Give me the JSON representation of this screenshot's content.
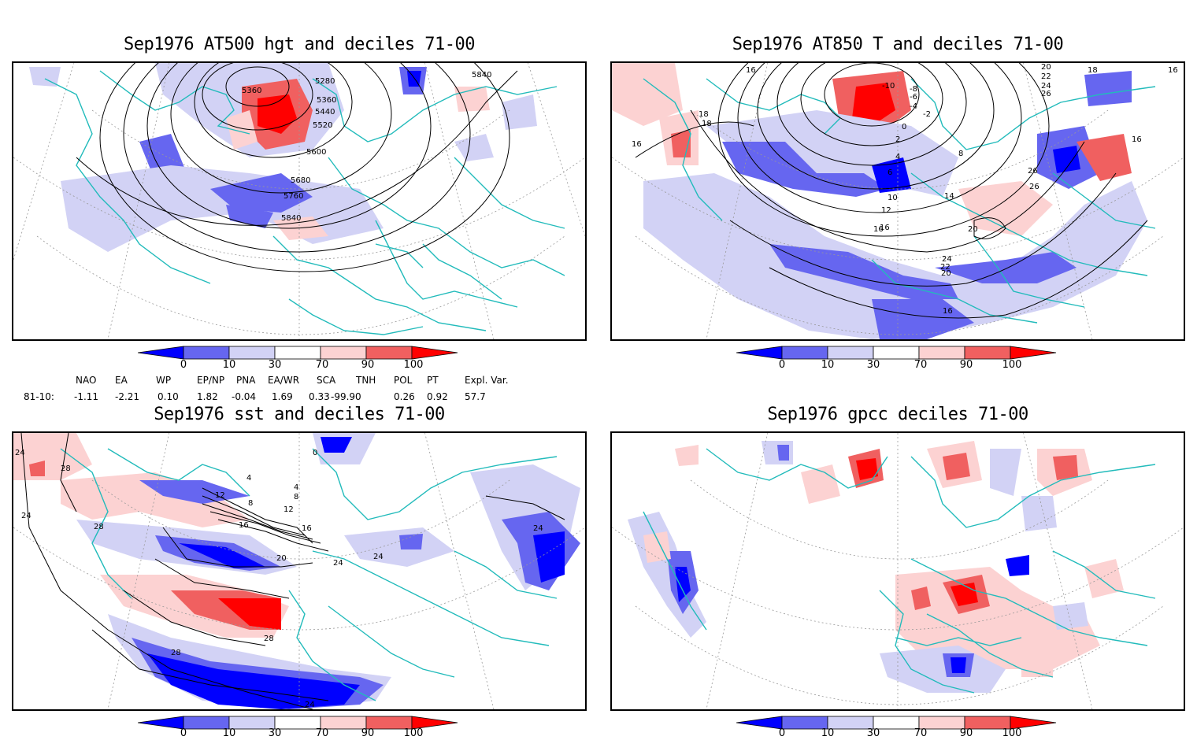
{
  "panels": [
    {
      "id": "at500",
      "title": "Sep1976 AT500 hgt and deciles 71-00",
      "contour_labels": [
        "5360",
        "5280",
        "5360",
        "5440",
        "5520",
        "5600",
        "5680",
        "5760",
        "5840",
        "5840"
      ]
    },
    {
      "id": "at850",
      "title": "Sep1976 AT850 T and deciles 71-00",
      "contour_labels": [
        "16",
        "18",
        "18",
        "16",
        "-10",
        "-8",
        "-6",
        "-4",
        "-2",
        "0",
        "2",
        "4",
        "6",
        "8",
        "10",
        "12",
        "14",
        "16",
        "20",
        "22",
        "24",
        "26",
        "26",
        "20",
        "16",
        "18",
        "16",
        "20",
        "22",
        "24",
        "26",
        "16",
        "16"
      ]
    },
    {
      "id": "sst",
      "title": "Sep1976 sst and deciles 71-00",
      "contour_labels": [
        "24",
        "28",
        "28",
        "24",
        "12",
        "8",
        "4",
        "0",
        "4",
        "8",
        "12",
        "16",
        "16",
        "20",
        "24",
        "24",
        "28",
        "24",
        "28",
        "24"
      ]
    },
    {
      "id": "gpcc",
      "title": "Sep1976 gpcc deciles 71-00",
      "contour_labels": []
    }
  ],
  "colorbar": {
    "tick_labels": [
      "0",
      "10",
      "30",
      "70",
      "90",
      "100"
    ],
    "colors": [
      "#0000ff",
      "#6666f0",
      "#d2d2f5",
      "#ffffff",
      "#fcd2d2",
      "#f06060",
      "#ff0000"
    ]
  },
  "indices": {
    "period": "81-10:",
    "names": [
      "NAO",
      "EA",
      "WP",
      "EP/NP",
      "PNA",
      "EA/WR",
      "SCA",
      "TNH",
      "POL",
      "PT",
      "Expl. Var."
    ],
    "values": [
      "-1.11",
      "-2.21",
      "0.10",
      "1.82",
      "-0.04",
      "1.69",
      "0.33",
      "-99.90",
      "0.26",
      "0.92",
      "57.7"
    ]
  },
  "colors": {
    "coast": "#22bbbb",
    "grid": "#999999",
    "contour": "#000000"
  }
}
